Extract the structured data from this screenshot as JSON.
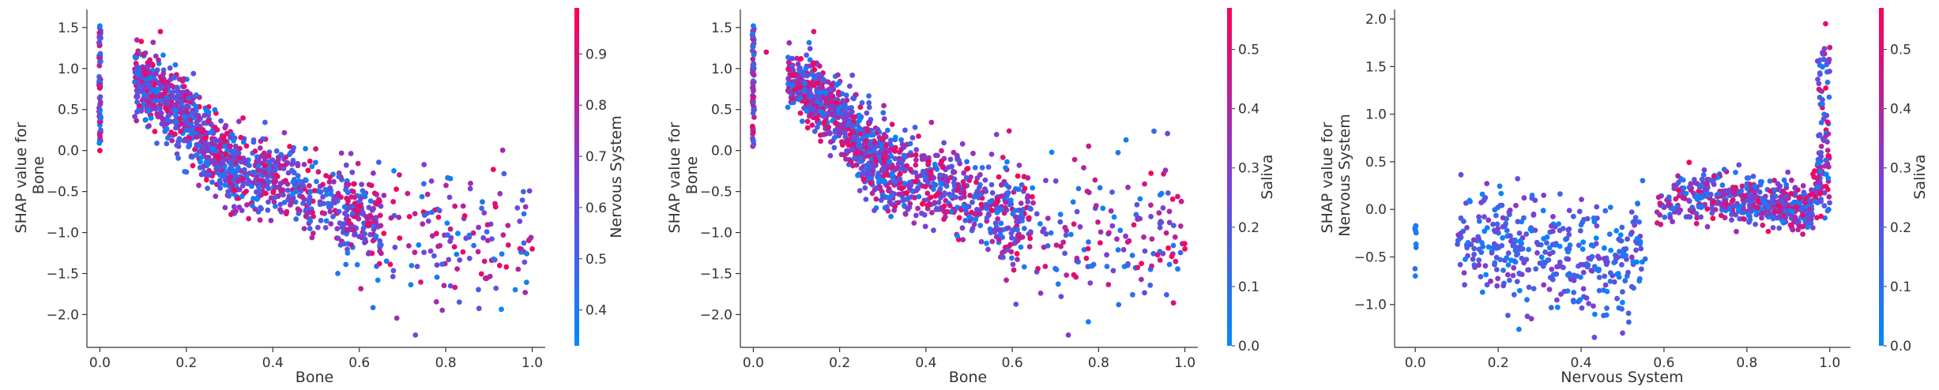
{
  "colormap": {
    "low": "#008afb",
    "mid": "#7b3fd6",
    "high": "#ff0052"
  },
  "chart_data": [
    {
      "type": "scatter",
      "xlabel": "Bone",
      "ylabel_lines": [
        "SHAP value for",
        "Bone"
      ],
      "xlim": [
        -0.03,
        1.03
      ],
      "ylim": [
        -2.4,
        1.72
      ],
      "xticks": [
        0.0,
        0.2,
        0.4,
        0.6,
        0.8,
        1.0
      ],
      "xtick_labels": [
        "0.0",
        "0.2",
        "0.4",
        "0.6",
        "0.8",
        "1.0"
      ],
      "yticks": [
        -2.0,
        -1.5,
        -1.0,
        -0.5,
        0.0,
        0.5,
        1.0,
        1.5
      ],
      "ytick_labels": [
        "−2.0",
        "−1.5",
        "−1.0",
        "−0.5",
        "0.0",
        "0.5",
        "1.0",
        "1.5"
      ],
      "colorbar": {
        "label": "Nervous System",
        "range": [
          0.33,
          0.99
        ],
        "ticks": [
          0.4,
          0.5,
          0.6,
          0.7,
          0.8,
          0.9
        ],
        "tick_labels": [
          "0.4",
          "0.5",
          "0.6",
          "0.7",
          "0.8",
          "0.9"
        ]
      },
      "trend": [
        [
          0.0,
          0.9
        ],
        [
          0.08,
          0.85
        ],
        [
          0.15,
          0.65
        ],
        [
          0.2,
          0.45
        ],
        [
          0.25,
          0.05
        ],
        [
          0.3,
          -0.2
        ],
        [
          0.4,
          -0.35
        ],
        [
          0.5,
          -0.6
        ],
        [
          0.6,
          -0.85
        ],
        [
          0.7,
          -1.0
        ],
        [
          0.8,
          -1.05
        ],
        [
          1.0,
          -1.0
        ]
      ],
      "highlighted_points": [
        {
          "x": 0.0,
          "y": 1.52,
          "c": 0.38
        },
        {
          "x": 0.0,
          "y": 0.0,
          "c": 0.95
        },
        {
          "x": 0.14,
          "y": 1.45,
          "c": 0.95
        },
        {
          "x": 0.73,
          "y": -2.25,
          "c": 0.6
        },
        {
          "x": 0.91,
          "y": -0.23,
          "c": 0.95
        },
        {
          "x": 1.0,
          "y": -1.2,
          "c": 0.95
        }
      ]
    },
    {
      "type": "scatter",
      "xlabel": "Bone",
      "ylabel_lines": [
        "SHAP value for",
        "Bone"
      ],
      "xlim": [
        -0.03,
        1.03
      ],
      "ylim": [
        -2.4,
        1.72
      ],
      "xticks": [
        0.0,
        0.2,
        0.4,
        0.6,
        0.8,
        1.0
      ],
      "xtick_labels": [
        "0.0",
        "0.2",
        "0.4",
        "0.6",
        "0.8",
        "1.0"
      ],
      "yticks": [
        -2.0,
        -1.5,
        -1.0,
        -0.5,
        0.0,
        0.5,
        1.0,
        1.5
      ],
      "ytick_labels": [
        "−2.0",
        "−1.5",
        "−1.0",
        "−0.5",
        "0.0",
        "0.5",
        "1.0",
        "1.5"
      ],
      "colorbar": {
        "label": "Saliva",
        "range": [
          0.0,
          0.57
        ],
        "ticks": [
          0.0,
          0.1,
          0.2,
          0.3,
          0.4,
          0.5
        ],
        "tick_labels": [
          "0.0",
          "0.1",
          "0.2",
          "0.3",
          "0.4",
          "0.5"
        ]
      },
      "trend": [
        [
          0.0,
          0.9
        ],
        [
          0.08,
          0.85
        ],
        [
          0.15,
          0.65
        ],
        [
          0.2,
          0.45
        ],
        [
          0.25,
          0.05
        ],
        [
          0.3,
          -0.2
        ],
        [
          0.4,
          -0.35
        ],
        [
          0.5,
          -0.6
        ],
        [
          0.6,
          -0.85
        ],
        [
          0.7,
          -1.0
        ],
        [
          0.8,
          -1.05
        ],
        [
          1.0,
          -1.0
        ]
      ],
      "highlighted_points": [
        {
          "x": 0.0,
          "y": 1.52,
          "c": 0.05
        },
        {
          "x": 0.03,
          "y": 1.2,
          "c": 0.5
        },
        {
          "x": 0.14,
          "y": 1.45,
          "c": 0.5
        },
        {
          "x": 0.73,
          "y": -2.25,
          "c": 0.3
        },
        {
          "x": 1.0,
          "y": -1.2,
          "c": 0.5
        }
      ]
    },
    {
      "type": "scatter",
      "xlabel": "Nervous System",
      "ylabel_lines": [
        "SHAP value for",
        "Nervous System"
      ],
      "xlim": [
        -0.05,
        1.05
      ],
      "ylim": [
        -1.45,
        2.1
      ],
      "xticks": [
        0.0,
        0.2,
        0.4,
        0.6,
        0.8,
        1.0
      ],
      "xtick_labels": [
        "0.0",
        "0.2",
        "0.4",
        "0.6",
        "0.8",
        "1.0"
      ],
      "yticks": [
        -1.0,
        -0.5,
        0.0,
        0.5,
        1.0,
        1.5,
        2.0
      ],
      "ytick_labels": [
        "−1.0",
        "−0.5",
        "0.0",
        "0.5",
        "1.0",
        "1.5",
        "2.0"
      ],
      "colorbar": {
        "label": "Saliva",
        "range": [
          0.0,
          0.57
        ],
        "ticks": [
          0.0,
          0.1,
          0.2,
          0.3,
          0.4,
          0.5
        ],
        "tick_labels": [
          "0.0",
          "0.1",
          "0.2",
          "0.3",
          "0.4",
          "0.5"
        ]
      },
      "trend": [
        [
          0.0,
          -0.3
        ],
        [
          0.15,
          -0.3
        ],
        [
          0.3,
          -0.4
        ],
        [
          0.45,
          -0.6
        ],
        [
          0.52,
          -0.5
        ],
        [
          0.57,
          -0.15
        ],
        [
          0.6,
          0.05
        ],
        [
          0.7,
          0.15
        ],
        [
          0.85,
          0.05
        ],
        [
          0.95,
          0.0
        ],
        [
          0.98,
          0.3
        ],
        [
          1.0,
          1.2
        ]
      ],
      "highlighted_points": [
        {
          "x": 0.0,
          "y": -0.7,
          "c": 0.05
        },
        {
          "x": 0.25,
          "y": -1.26,
          "c": 0.05
        },
        {
          "x": 0.5,
          "y": -1.3,
          "c": 0.25
        },
        {
          "x": 0.99,
          "y": 1.95,
          "c": 0.5
        },
        {
          "x": 1.0,
          "y": 1.7,
          "c": 0.45
        }
      ]
    }
  ]
}
